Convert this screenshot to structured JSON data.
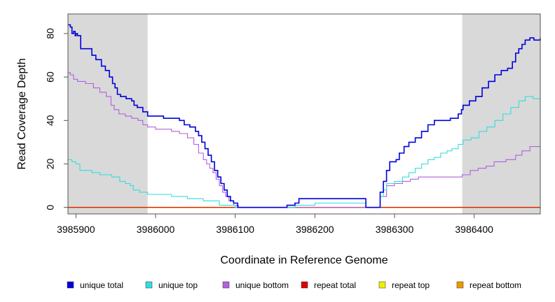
{
  "chart_data": {
    "type": "line",
    "title": "",
    "xlabel": "Coordinate in Reference Genome",
    "ylabel": "Read Coverage Depth",
    "xlim": [
      3985890,
      3986483
    ],
    "ylim": [
      -3,
      89
    ],
    "xticks": [
      3985900,
      3986000,
      3986100,
      3986200,
      3986300,
      3986400
    ],
    "yticks": [
      0,
      20,
      40,
      60,
      80
    ],
    "shaded_regions": [
      {
        "start": 3985890,
        "end": 3985990,
        "color": "#d9d9d9"
      },
      {
        "start": 3986385,
        "end": 3986483,
        "color": "#d9d9d9"
      }
    ],
    "series": [
      {
        "name": "unique total",
        "color": "#0000dd",
        "width": 1.6,
        "points": [
          [
            3985890,
            84
          ],
          [
            3985893,
            83
          ],
          [
            3985895,
            80
          ],
          [
            3985897,
            81
          ],
          [
            3985899,
            79
          ],
          [
            3985900,
            80
          ],
          [
            3985902,
            79
          ],
          [
            3985906,
            73
          ],
          [
            3985920,
            70
          ],
          [
            3985925,
            68
          ],
          [
            3985932,
            65
          ],
          [
            3985937,
            63
          ],
          [
            3985942,
            60
          ],
          [
            3985946,
            57
          ],
          [
            3985949,
            55
          ],
          [
            3985952,
            52
          ],
          [
            3985956,
            51
          ],
          [
            3985963,
            50
          ],
          [
            3985970,
            49
          ],
          [
            3985973,
            47
          ],
          [
            3985977,
            46
          ],
          [
            3985984,
            44
          ],
          [
            3985990,
            42
          ],
          [
            3986000,
            42
          ],
          [
            3986010,
            41
          ],
          [
            3986030,
            40
          ],
          [
            3986036,
            38
          ],
          [
            3986043,
            37
          ],
          [
            3986050,
            35
          ],
          [
            3986054,
            33
          ],
          [
            3986058,
            30
          ],
          [
            3986062,
            27
          ],
          [
            3986066,
            24
          ],
          [
            3986070,
            21
          ],
          [
            3986074,
            17
          ],
          [
            3986078,
            14
          ],
          [
            3986082,
            11
          ],
          [
            3986086,
            8
          ],
          [
            3986090,
            5
          ],
          [
            3986094,
            3
          ],
          [
            3986098,
            2
          ],
          [
            3986103,
            0
          ],
          [
            3986148,
            0
          ],
          [
            3986165,
            1
          ],
          [
            3986175,
            2
          ],
          [
            3986180,
            4
          ],
          [
            3986200,
            4
          ],
          [
            3986235,
            4
          ],
          [
            3986262,
            4
          ],
          [
            3986264,
            0
          ],
          [
            3986278,
            0
          ],
          [
            3986282,
            7
          ],
          [
            3986286,
            12
          ],
          [
            3986290,
            17
          ],
          [
            3986294,
            21
          ],
          [
            3986302,
            22
          ],
          [
            3986306,
            25
          ],
          [
            3986312,
            28
          ],
          [
            3986318,
            30
          ],
          [
            3986326,
            32
          ],
          [
            3986334,
            35
          ],
          [
            3986342,
            38
          ],
          [
            3986350,
            40
          ],
          [
            3986366,
            40
          ],
          [
            3986370,
            41
          ],
          [
            3986380,
            43
          ],
          [
            3986384,
            45
          ],
          [
            3986386,
            47
          ],
          [
            3986394,
            49
          ],
          [
            3986402,
            51
          ],
          [
            3986410,
            55
          ],
          [
            3986418,
            58
          ],
          [
            3986426,
            61
          ],
          [
            3986434,
            63
          ],
          [
            3986442,
            64
          ],
          [
            3986448,
            67
          ],
          [
            3986452,
            71
          ],
          [
            3986456,
            73
          ],
          [
            3986460,
            75
          ],
          [
            3986464,
            77
          ],
          [
            3986470,
            78
          ],
          [
            3986475,
            77
          ],
          [
            3986483,
            78
          ]
        ]
      },
      {
        "name": "unique top",
        "color": "#33dddd",
        "width": 1.1,
        "points": [
          [
            3985890,
            22
          ],
          [
            3985895,
            21
          ],
          [
            3985900,
            20
          ],
          [
            3985905,
            17
          ],
          [
            3985920,
            16
          ],
          [
            3985930,
            15
          ],
          [
            3985945,
            14
          ],
          [
            3985955,
            12
          ],
          [
            3985962,
            11
          ],
          [
            3985968,
            10
          ],
          [
            3985972,
            8
          ],
          [
            3985980,
            7
          ],
          [
            3985990,
            6
          ],
          [
            3986010,
            6
          ],
          [
            3986020,
            5
          ],
          [
            3986040,
            4
          ],
          [
            3986060,
            3
          ],
          [
            3986080,
            1
          ],
          [
            3986100,
            0
          ],
          [
            3986150,
            0
          ],
          [
            3986175,
            1
          ],
          [
            3986200,
            2
          ],
          [
            3986262,
            2
          ],
          [
            3986264,
            0
          ],
          [
            3986278,
            0
          ],
          [
            3986282,
            5
          ],
          [
            3986286,
            8
          ],
          [
            3986290,
            11
          ],
          [
            3986300,
            12
          ],
          [
            3986310,
            14
          ],
          [
            3986318,
            16
          ],
          [
            3986326,
            18
          ],
          [
            3986334,
            20
          ],
          [
            3986342,
            22
          ],
          [
            3986350,
            23
          ],
          [
            3986358,
            25
          ],
          [
            3986366,
            26
          ],
          [
            3986372,
            27
          ],
          [
            3986380,
            29
          ],
          [
            3986386,
            31
          ],
          [
            3986396,
            32
          ],
          [
            3986406,
            35
          ],
          [
            3986416,
            37
          ],
          [
            3986426,
            40
          ],
          [
            3986436,
            43
          ],
          [
            3986446,
            46
          ],
          [
            3986456,
            49
          ],
          [
            3986464,
            51
          ],
          [
            3986474,
            50
          ],
          [
            3986483,
            50
          ]
        ]
      },
      {
        "name": "unique bottom",
        "color": "#b060e0",
        "width": 1.1,
        "points": [
          [
            3985890,
            62
          ],
          [
            3985893,
            61
          ],
          [
            3985897,
            59
          ],
          [
            3985902,
            58
          ],
          [
            3985912,
            57
          ],
          [
            3985922,
            55
          ],
          [
            3985930,
            53
          ],
          [
            3985938,
            51
          ],
          [
            3985944,
            47
          ],
          [
            3985948,
            45
          ],
          [
            3985954,
            43
          ],
          [
            3985962,
            42
          ],
          [
            3985970,
            41
          ],
          [
            3985978,
            40
          ],
          [
            3985984,
            38
          ],
          [
            3985990,
            37
          ],
          [
            3986000,
            36
          ],
          [
            3986020,
            35
          ],
          [
            3986030,
            34
          ],
          [
            3986040,
            32
          ],
          [
            3986048,
            29
          ],
          [
            3986054,
            25
          ],
          [
            3986060,
            22
          ],
          [
            3986064,
            20
          ],
          [
            3986068,
            18
          ],
          [
            3986072,
            16
          ],
          [
            3986076,
            13
          ],
          [
            3986080,
            10
          ],
          [
            3986084,
            7
          ],
          [
            3986088,
            5
          ],
          [
            3986092,
            3
          ],
          [
            3986098,
            1
          ],
          [
            3986104,
            0
          ],
          [
            3986278,
            0
          ],
          [
            3986282,
            5
          ],
          [
            3986290,
            10
          ],
          [
            3986300,
            11
          ],
          [
            3986310,
            12
          ],
          [
            3986320,
            13
          ],
          [
            3986330,
            14
          ],
          [
            3986345,
            14
          ],
          [
            3986360,
            14
          ],
          [
            3986385,
            15
          ],
          [
            3986395,
            17
          ],
          [
            3986405,
            18
          ],
          [
            3986415,
            19
          ],
          [
            3986425,
            21
          ],
          [
            3986440,
            22
          ],
          [
            3986452,
            24
          ],
          [
            3986460,
            26
          ],
          [
            3986470,
            28
          ],
          [
            3986483,
            28
          ]
        ]
      },
      {
        "name": "repeat total",
        "color": "#dd0000",
        "width": 1.1,
        "points": [
          [
            3985890,
            0
          ],
          [
            3986483,
            0
          ]
        ]
      },
      {
        "name": "repeat top",
        "color": "#eeee00",
        "width": 1.1,
        "points": [
          [
            3985890,
            0
          ],
          [
            3986483,
            0
          ]
        ]
      },
      {
        "name": "repeat bottom",
        "color": "#ee9900",
        "width": 1.6,
        "points": [
          [
            3985890,
            0
          ],
          [
            3986483,
            0
          ]
        ]
      }
    ]
  }
}
